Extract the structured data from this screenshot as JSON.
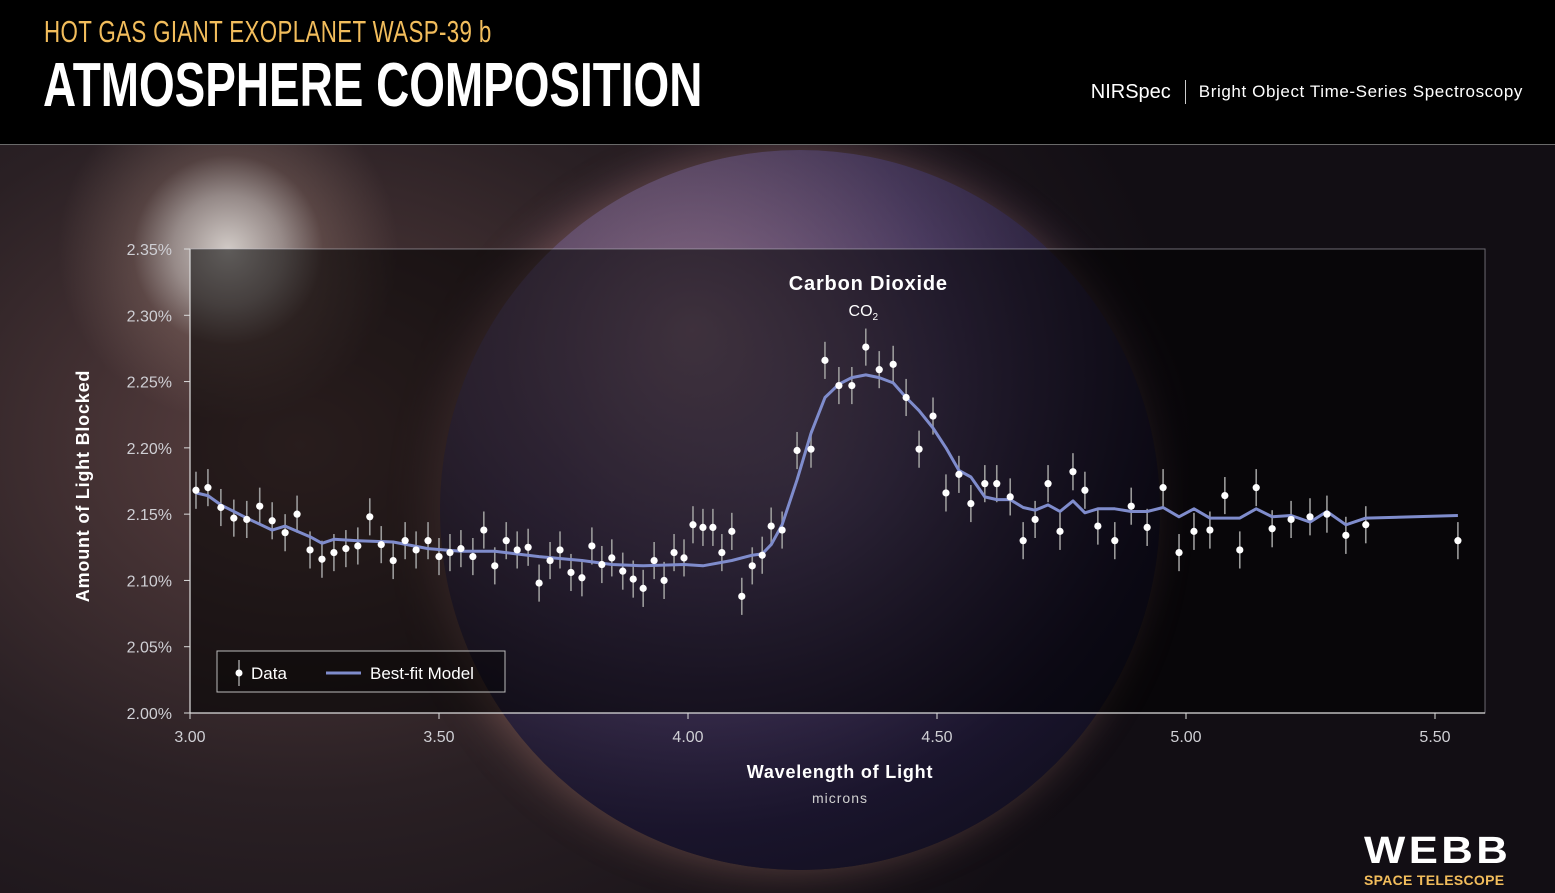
{
  "header": {
    "subtitle": "HOT GAS GIANT EXOPLANET WASP-39 b",
    "title": "ATMOSPHERE COMPOSITION",
    "instrument": "NIRSpec",
    "mode": "Bright Object Time-Series Spectroscopy"
  },
  "logo": {
    "name": "WEBB",
    "tagline": "SPACE TELESCOPE"
  },
  "colors": {
    "accent": "#f2bd5c",
    "model": "#7f8ccc",
    "data": "#ffffff",
    "errorbar": "#9a9a9a"
  },
  "chart_data": {
    "type": "scatter",
    "xlabel": "Wavelength of Light",
    "xunit": "microns",
    "ylabel": "Amount of Light Blocked",
    "xlim": [
      3.0,
      5.6
    ],
    "ylim": [
      2.0,
      2.35
    ],
    "xticks": [
      "3.00",
      "3.50",
      "4.00",
      "4.50",
      "5.00",
      "5.50"
    ],
    "yticks": [
      "2.00%",
      "2.05%",
      "2.10%",
      "2.15%",
      "2.20%",
      "2.25%",
      "2.30%",
      "2.35%"
    ],
    "legend": {
      "position": "bottom-left",
      "entries": [
        "Data",
        "Best-fit Model"
      ]
    },
    "annotation": {
      "label": "Carbon Dioxide",
      "formula": "CO",
      "subscript": "2",
      "x": 4.35
    },
    "series": [
      {
        "name": "Data",
        "kind": "points-with-errorbars",
        "error": 0.014,
        "x": [
          3.012,
          3.036,
          3.062,
          3.088,
          3.114,
          3.14,
          3.165,
          3.191,
          3.215,
          3.241,
          3.265,
          3.289,
          3.313,
          3.337,
          3.361,
          3.384,
          3.408,
          3.432,
          3.454,
          3.478,
          3.5,
          3.522,
          3.544,
          3.568,
          3.59,
          3.612,
          3.635,
          3.657,
          3.679,
          3.701,
          3.723,
          3.743,
          3.765,
          3.787,
          3.807,
          3.827,
          3.847,
          3.869,
          3.89,
          3.91,
          3.932,
          3.952,
          3.972,
          3.992,
          4.01,
          4.03,
          4.05,
          4.068,
          4.088,
          4.108,
          4.129,
          4.149,
          4.167,
          4.189,
          4.219,
          4.247,
          4.275,
          4.303,
          4.329,
          4.357,
          4.384,
          4.412,
          4.438,
          4.464,
          4.492,
          4.518,
          4.544,
          4.568,
          4.596,
          4.62,
          4.647,
          4.673,
          4.697,
          4.723,
          4.747,
          4.773,
          4.797,
          4.823,
          4.857,
          4.89,
          4.922,
          4.954,
          4.986,
          5.016,
          5.048,
          5.078,
          5.108,
          5.141,
          5.173,
          5.211,
          5.249,
          5.283,
          5.321,
          5.361,
          5.546
        ],
        "y": [
          2.168,
          2.17,
          2.155,
          2.147,
          2.146,
          2.156,
          2.145,
          2.136,
          2.15,
          2.123,
          2.116,
          2.121,
          2.124,
          2.126,
          2.148,
          2.127,
          2.115,
          2.13,
          2.123,
          2.13,
          2.118,
          2.121,
          2.124,
          2.118,
          2.138,
          2.111,
          2.13,
          2.123,
          2.125,
          2.098,
          2.115,
          2.123,
          2.106,
          2.102,
          2.126,
          2.112,
          2.117,
          2.107,
          2.101,
          2.094,
          2.115,
          2.1,
          2.121,
          2.117,
          2.142,
          2.14,
          2.14,
          2.121,
          2.137,
          2.088,
          2.111,
          2.119,
          2.141,
          2.138,
          2.198,
          2.199,
          2.266,
          2.247,
          2.247,
          2.276,
          2.259,
          2.263,
          2.238,
          2.199,
          2.224,
          2.166,
          2.18,
          2.158,
          2.173,
          2.173,
          2.163,
          2.13,
          2.146,
          2.173,
          2.137,
          2.182,
          2.168,
          2.141,
          2.13,
          2.156,
          2.14,
          2.17,
          2.121,
          2.137,
          2.138,
          2.164,
          2.123,
          2.17,
          2.139,
          2.146,
          2.148,
          2.15,
          2.134,
          2.142,
          2.13
        ]
      },
      {
        "name": "Best-fit Model",
        "kind": "line",
        "x": [
          3.012,
          3.036,
          3.062,
          3.114,
          3.165,
          3.191,
          3.241,
          3.265,
          3.289,
          3.337,
          3.408,
          3.478,
          3.544,
          3.612,
          3.701,
          3.787,
          3.847,
          3.91,
          3.992,
          4.03,
          4.088,
          4.129,
          4.149,
          4.167,
          4.189,
          4.219,
          4.247,
          4.275,
          4.303,
          4.329,
          4.357,
          4.384,
          4.412,
          4.438,
          4.464,
          4.492,
          4.518,
          4.544,
          4.568,
          4.596,
          4.62,
          4.647,
          4.673,
          4.697,
          4.723,
          4.747,
          4.773,
          4.797,
          4.823,
          4.857,
          4.89,
          4.922,
          4.954,
          4.986,
          5.016,
          5.048,
          5.108,
          5.141,
          5.173,
          5.211,
          5.249,
          5.283,
          5.321,
          5.361,
          5.546
        ],
        "y": [
          2.166,
          2.164,
          2.157,
          2.147,
          2.138,
          2.141,
          2.133,
          2.128,
          2.131,
          2.13,
          2.129,
          2.124,
          2.122,
          2.122,
          2.118,
          2.115,
          2.112,
          2.111,
          2.112,
          2.111,
          2.115,
          2.119,
          2.12,
          2.127,
          2.142,
          2.176,
          2.211,
          2.238,
          2.248,
          2.253,
          2.255,
          2.253,
          2.249,
          2.238,
          2.228,
          2.215,
          2.2,
          2.183,
          2.178,
          2.163,
          2.161,
          2.161,
          2.155,
          2.153,
          2.157,
          2.152,
          2.16,
          2.151,
          2.154,
          2.154,
          2.152,
          2.152,
          2.155,
          2.148,
          2.154,
          2.147,
          2.147,
          2.154,
          2.148,
          2.149,
          2.144,
          2.152,
          2.142,
          2.147,
          2.149
        ]
      }
    ]
  }
}
